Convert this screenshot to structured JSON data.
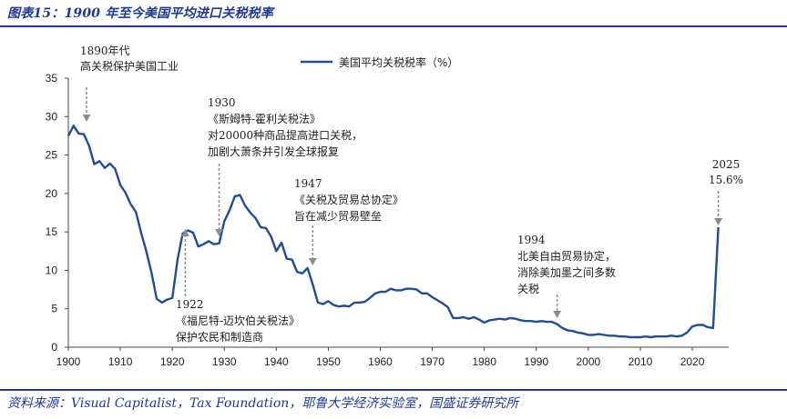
{
  "figure_title": "图表15：1900 年至今美国平均进口关税税率",
  "source": "资料来源：Visual Capitalist，Tax Foundation，耶鲁大学经济实验室，国盛证券研究所",
  "chart_data": {
    "type": "line",
    "title": "",
    "xlabel": "",
    "ylabel": "",
    "xlim": [
      1900,
      2027
    ],
    "ylim": [
      0,
      35
    ],
    "x_ticks": [
      1900,
      1910,
      1920,
      1930,
      1940,
      1950,
      1960,
      1970,
      1980,
      1990,
      2000,
      2010,
      2020
    ],
    "y_ticks": [
      0,
      5,
      10,
      15,
      20,
      25,
      30,
      35
    ],
    "grid": false,
    "legend": "top-center",
    "colors": {
      "series": "#1f4e99",
      "annotation_arrow": "#8c8c8c"
    },
    "series": [
      {
        "name": "美国平均关税税率（%）",
        "x": [
          1900,
          1901,
          1902,
          1903,
          1904,
          1905,
          1906,
          1907,
          1908,
          1909,
          1910,
          1911,
          1912,
          1913,
          1914,
          1915,
          1916,
          1917,
          1918,
          1919,
          1920,
          1921,
          1922,
          1923,
          1924,
          1925,
          1926,
          1927,
          1928,
          1929,
          1930,
          1931,
          1932,
          1933,
          1934,
          1935,
          1936,
          1937,
          1938,
          1939,
          1940,
          1941,
          1942,
          1943,
          1944,
          1945,
          1946,
          1947,
          1948,
          1949,
          1950,
          1951,
          1952,
          1953,
          1954,
          1955,
          1956,
          1957,
          1958,
          1959,
          1960,
          1961,
          1962,
          1963,
          1964,
          1965,
          1966,
          1967,
          1968,
          1969,
          1970,
          1971,
          1972,
          1973,
          1974,
          1975,
          1976,
          1977,
          1978,
          1979,
          1980,
          1981,
          1982,
          1983,
          1984,
          1985,
          1986,
          1987,
          1988,
          1989,
          1990,
          1991,
          1992,
          1993,
          1994,
          1995,
          1996,
          1997,
          1998,
          1999,
          2000,
          2001,
          2002,
          2003,
          2004,
          2005,
          2006,
          2007,
          2008,
          2009,
          2010,
          2011,
          2012,
          2013,
          2014,
          2015,
          2016,
          2017,
          2018,
          2019,
          2020,
          2021,
          2022,
          2023,
          2024,
          2025
        ],
        "values": [
          27.5,
          28.8,
          27.8,
          27.7,
          26.2,
          23.8,
          24.2,
          23.3,
          23.9,
          23.2,
          21.1,
          20.1,
          18.6,
          17.6,
          14.9,
          12.5,
          9.7,
          6.3,
          5.8,
          6.2,
          6.4,
          11.4,
          14.8,
          15.2,
          14.9,
          13.1,
          13.4,
          13.8,
          13.4,
          13.5,
          16.4,
          17.8,
          19.6,
          19.8,
          18.4,
          17.5,
          16.8,
          15.6,
          15.5,
          14.4,
          12.5,
          13.6,
          11.5,
          11.4,
          9.8,
          9.6,
          10.3,
          8.2,
          5.8,
          5.6,
          6.0,
          5.5,
          5.3,
          5.4,
          5.3,
          5.8,
          5.8,
          5.9,
          6.4,
          7.0,
          7.2,
          7.2,
          7.6,
          7.4,
          7.4,
          7.6,
          7.6,
          7.5,
          7.0,
          7.0,
          6.5,
          6.1,
          5.7,
          5.2,
          3.8,
          3.8,
          3.9,
          3.7,
          3.9,
          3.6,
          3.2,
          3.5,
          3.6,
          3.7,
          3.6,
          3.8,
          3.7,
          3.5,
          3.4,
          3.4,
          3.3,
          3.4,
          3.3,
          3.3,
          3.0,
          2.5,
          2.2,
          2.1,
          1.9,
          1.8,
          1.6,
          1.6,
          1.7,
          1.6,
          1.5,
          1.5,
          1.4,
          1.4,
          1.3,
          1.3,
          1.3,
          1.4,
          1.3,
          1.4,
          1.4,
          1.4,
          1.5,
          1.4,
          1.5,
          1.9,
          2.7,
          2.9,
          2.9,
          2.6,
          2.5,
          15.6
        ]
      }
    ],
    "annotations": [
      {
        "lines": [
          "1890年代",
          "高关税保护美国工业"
        ],
        "arrow_x": 1903.5,
        "arrow_dir": "down"
      },
      {
        "lines": [
          "1930",
          "《斯姆特-霍利关税法》",
          "对20000种商品提高进口关税，",
          "加剧大萧条并引发全球报复"
        ],
        "arrow_x": 1929,
        "arrow_dir": "down"
      },
      {
        "lines": [
          "1947",
          "《关税及贸易总协定》",
          "旨在减少贸易壁垒"
        ],
        "arrow_x": 1947,
        "arrow_dir": "down"
      },
      {
        "lines": [
          "1922",
          "《福尼特-迈坎伯关税法》",
          "保护农民和制造商"
        ],
        "arrow_x": 1922.5,
        "arrow_dir": "up"
      },
      {
        "lines": [
          "1994",
          "北美自由贸易协定，",
          "消除美加墨之间多数",
          "关税"
        ],
        "arrow_x": 1994,
        "arrow_dir": "down"
      },
      {
        "lines": [
          "2025",
          "15.6%"
        ],
        "arrow_x": 2025,
        "arrow_dir": "down"
      }
    ]
  }
}
